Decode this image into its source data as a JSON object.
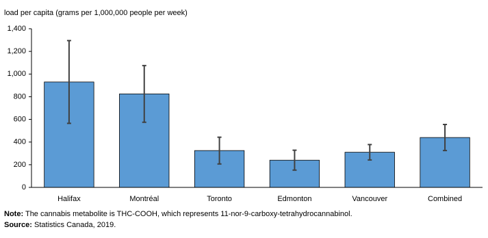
{
  "chart_data": {
    "type": "bar",
    "y_axis_label": "load per capita (grams per 1,000,000 people per week)",
    "categories": [
      "Halifax",
      "Montréal",
      "Toronto",
      "Edmonton",
      "Vancouver",
      "Combined"
    ],
    "values": [
      930,
      825,
      325,
      240,
      310,
      440
    ],
    "errors": [
      365,
      250,
      118,
      88,
      68,
      115
    ],
    "color": "#5b9bd5",
    "ylim": [
      0,
      1400
    ],
    "yticks": [
      0,
      200,
      400,
      600,
      800,
      {
        "value": 1000,
        "label": "1,000"
      },
      {
        "value": 1200,
        "label": "1,200"
      },
      {
        "value": 1400,
        "label": "1,400"
      }
    ],
    "grid": false,
    "notes": [
      {
        "label": "Note:",
        "text": "The cannabis metabolite is THC-COOH, which represents 11-nor-9-carboxy-tetrahydrocannabinol."
      },
      {
        "label": "Source:",
        "text": "Statistics Canada, 2019."
      }
    ]
  }
}
